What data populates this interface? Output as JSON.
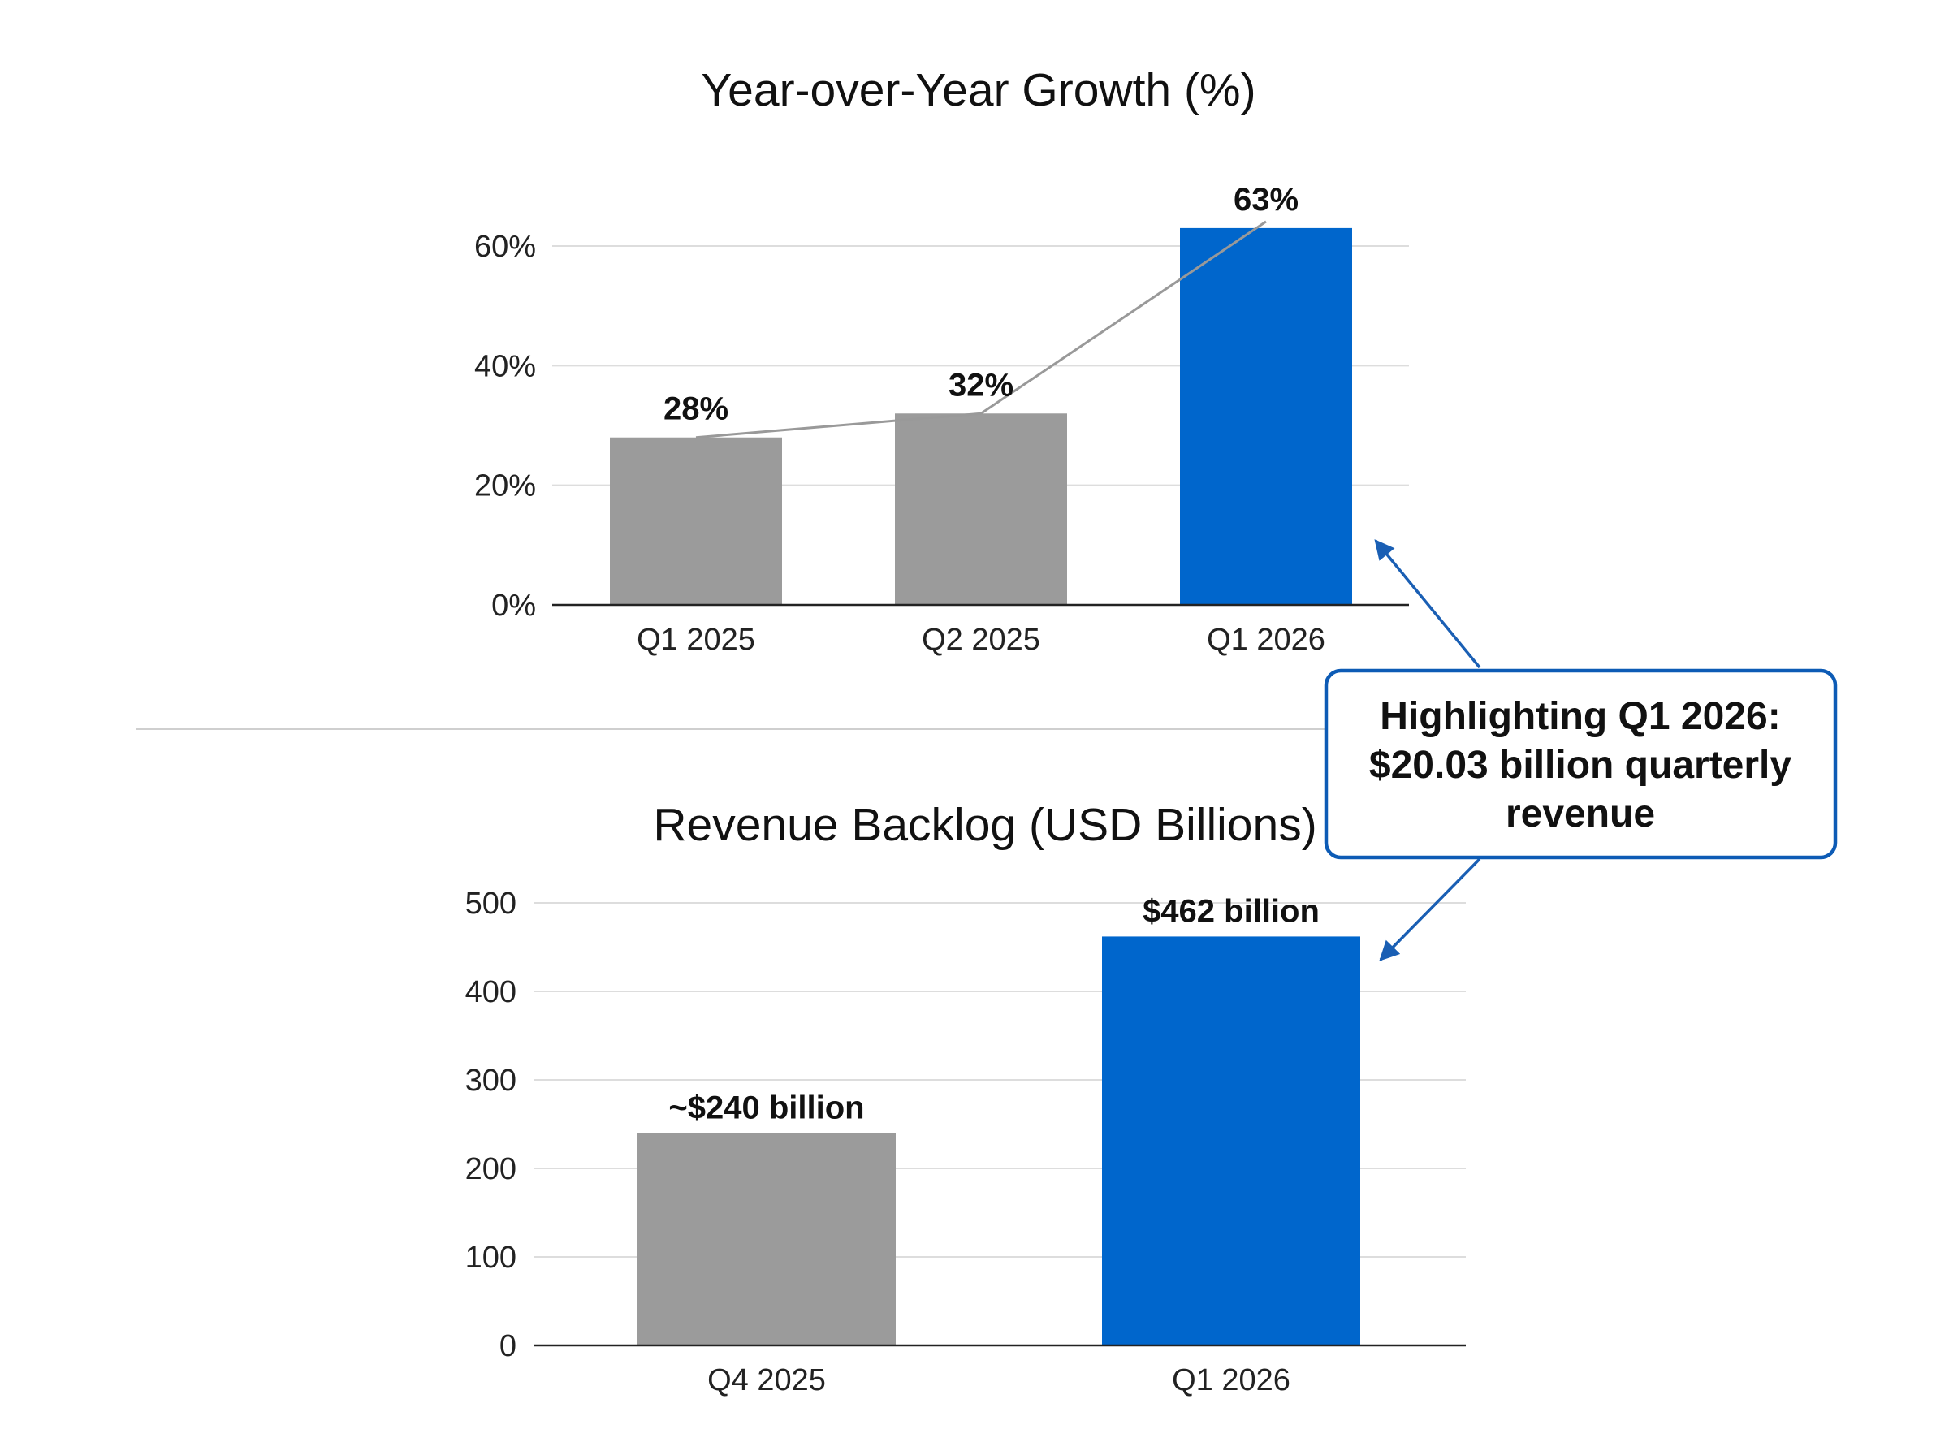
{
  "chart_data": [
    {
      "type": "bar",
      "title": "Year-over-Year Growth (%)",
      "categories": [
        "Q1 2025",
        "Q2 2025",
        "Q1 2026"
      ],
      "values": [
        28,
        32,
        63
      ],
      "data_labels": [
        "28%",
        "32%",
        "63%"
      ],
      "ylim": [
        0,
        60
      ],
      "yticks": [
        0,
        20,
        40,
        60
      ],
      "ytick_labels": [
        "0%",
        "20%",
        "40%",
        "60%"
      ],
      "xlabel": "",
      "ylabel": "",
      "grid": true,
      "trend_line": true,
      "bar_colors": [
        "#9b9b9b",
        "#9b9b9b",
        "#0066cc"
      ]
    },
    {
      "type": "bar",
      "title": "Revenue Backlog (USD Billions)",
      "categories": [
        "Q4 2025",
        "Q1 2026"
      ],
      "values": [
        240,
        462
      ],
      "data_labels": [
        "~$240 billion",
        "$462 billion"
      ],
      "ylim": [
        0,
        500
      ],
      "yticks": [
        0,
        100,
        200,
        300,
        400,
        500
      ],
      "ytick_labels": [
        "0",
        "100",
        "200",
        "300",
        "400",
        "500"
      ],
      "xlabel": "",
      "ylabel": "",
      "grid": true,
      "bar_colors": [
        "#9b9b9b",
        "#0066cc"
      ]
    }
  ],
  "callout": {
    "lines": [
      "Highlighting Q1 2026:",
      "$20.03 billion quarterly",
      "revenue"
    ],
    "border_color": "#0d5bb5",
    "arrow_color": "#1a5fb4"
  },
  "colors": {
    "accent": "#0066cc",
    "muted_bar": "#9b9b9b",
    "trend_line": "#999999",
    "grid": "#dddddd",
    "axis": "#222222",
    "divider": "#cfcfcf"
  }
}
